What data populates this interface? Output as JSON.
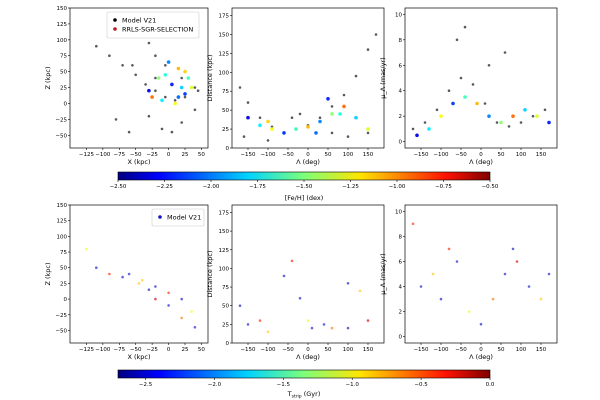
{
  "colors": {
    "model": "#000000",
    "model_blue": "#1414c8",
    "selection": "#b41e1e",
    "frame": "#000000"
  },
  "colorbar_top": {
    "label": "[Fe/H] (dex)",
    "ticks": [
      "−2.50",
      "−2.25",
      "−2.00",
      "−1.75",
      "−1.50",
      "−1.25",
      "−1.00",
      "−0.75",
      "−0.50"
    ],
    "range": [
      -2.5,
      -0.5
    ],
    "colormap": "jet"
  },
  "colorbar_bottom": {
    "label": "T",
    "label_sub": "strip",
    "label_tail": " (Gyr)",
    "ticks": [
      "−2.5",
      "−2.0",
      "−1.5",
      "−1.0",
      "−0.5",
      "0.0"
    ],
    "range": [
      -2.7,
      0.0
    ],
    "colormap": "jet"
  },
  "chart_data": [
    {
      "type": "scatter",
      "panel": "top-left",
      "xlabel": "X (kpc)",
      "ylabel": "Z (kpc)",
      "xlim": [
        -150,
        60
      ],
      "ylim": [
        -70,
        150
      ],
      "xticks": [
        "−125",
        "−100",
        "−75",
        "−50",
        "−25",
        "0",
        "25",
        "50"
      ],
      "yticks": [
        "−50",
        "−25",
        "0",
        "25",
        "50",
        "75",
        "100",
        "125",
        "150"
      ],
      "legend": {
        "placement": "top-center",
        "entries": [
          "Model V21",
          "RRLS-SGR-SELECTION"
        ]
      },
      "series": [
        {
          "name": "Model V21",
          "color": "#000000",
          "points_xy": [
            [
              -110,
              90
            ],
            [
              -90,
              75
            ],
            [
              -70,
              60
            ],
            [
              -50,
              45
            ],
            [
              -35,
              30
            ],
            [
              -20,
              20
            ],
            [
              -5,
              10
            ],
            [
              10,
              5
            ],
            [
              25,
              10
            ],
            [
              40,
              25
            ],
            [
              20,
              40
            ],
            [
              -5,
              60
            ],
            [
              -20,
              75
            ],
            [
              -30,
              95
            ],
            [
              -40,
              120
            ],
            [
              -55,
              60
            ],
            [
              -30,
              -20
            ],
            [
              -10,
              -40
            ],
            [
              5,
              -45
            ],
            [
              20,
              -30
            ],
            [
              40,
              -10
            ],
            [
              -80,
              -25
            ],
            [
              -60,
              -45
            ],
            [
              -20,
              40
            ],
            [
              45,
              20
            ]
          ]
        },
        {
          "name": "RRLS-SGR-SELECTION",
          "color": "#b41e1e",
          "points_xy": [
            [
              -30,
              20
            ],
            [
              -10,
              5
            ],
            [
              10,
              0
            ],
            [
              25,
              15
            ],
            [
              30,
              40
            ],
            [
              15,
              55
            ],
            [
              0,
              65
            ],
            [
              -15,
              40
            ],
            [
              -25,
              10
            ],
            [
              20,
              25
            ],
            [
              35,
              25
            ],
            [
              5,
              30
            ],
            [
              -5,
              45
            ],
            [
              25,
              50
            ],
            [
              15,
              10
            ]
          ]
        }
      ]
    },
    {
      "type": "scatter",
      "panel": "top-middle",
      "xlabel": "Λ (deg)",
      "ylabel": "Distance (kpc)",
      "xlim": [
        -190,
        190
      ],
      "ylim": [
        0,
        185
      ],
      "xticks": [
        "−150",
        "−100",
        "−50",
        "0",
        "50",
        "100",
        "150"
      ],
      "yticks": [
        "0",
        "25",
        "50",
        "75",
        "100",
        "125",
        "150",
        "175"
      ],
      "series": [
        {
          "name": "Model V21",
          "color": "#000000",
          "points_xy": [
            [
              -170,
              80
            ],
            [
              -150,
              60
            ],
            [
              -120,
              40
            ],
            [
              -90,
              28
            ],
            [
              -60,
              20
            ],
            [
              -30,
              25
            ],
            [
              0,
              30
            ],
            [
              30,
              40
            ],
            [
              60,
              55
            ],
            [
              90,
              70
            ],
            [
              120,
              95
            ],
            [
              150,
              130
            ],
            [
              170,
              150
            ],
            [
              -160,
              15
            ],
            [
              -100,
              10
            ],
            [
              -40,
              40
            ],
            [
              -20,
              45
            ],
            [
              60,
              20
            ],
            [
              100,
              15
            ],
            [
              150,
              20
            ]
          ]
        },
        {
          "name": "RRLS-SGR-SELECTION",
          "color": "#b41e1e",
          "points_xy": [
            [
              -150,
              40
            ],
            [
              -120,
              30
            ],
            [
              -90,
              25
            ],
            [
              -60,
              20
            ],
            [
              -30,
              25
            ],
            [
              0,
              28
            ],
            [
              30,
              35
            ],
            [
              60,
              45
            ],
            [
              90,
              55
            ],
            [
              120,
              40
            ],
            [
              150,
              25
            ],
            [
              50,
              65
            ],
            [
              80,
              45
            ],
            [
              -100,
              35
            ],
            [
              20,
              20
            ]
          ]
        }
      ]
    },
    {
      "type": "scatter",
      "panel": "top-right",
      "xlabel": "Λ (deg)",
      "ylabel": "μ_Λ (mas/yr)",
      "xlim": [
        -190,
        190
      ],
      "ylim": [
        -0.5,
        10.5
      ],
      "xticks": [
        "−150",
        "−100",
        "−50",
        "0",
        "50",
        "100",
        "150"
      ],
      "yticks": [
        "0",
        "2",
        "4",
        "6",
        "8",
        "10"
      ],
      "series": [
        {
          "name": "Model V21",
          "color": "#000000",
          "points_xy": [
            [
              -170,
              1
            ],
            [
              -140,
              1.5
            ],
            [
              -110,
              2.5
            ],
            [
              -80,
              4
            ],
            [
              -50,
              5
            ],
            [
              -20,
              4.5
            ],
            [
              10,
              3
            ],
            [
              40,
              1.5
            ],
            [
              70,
              1.2
            ],
            [
              100,
              1.5
            ],
            [
              130,
              2
            ],
            [
              160,
              2.5
            ],
            [
              -60,
              8
            ],
            [
              -40,
              9
            ],
            [
              20,
              6
            ],
            [
              60,
              7
            ]
          ]
        },
        {
          "name": "RRLS-SGR-SELECTION",
          "color": "#b41e1e",
          "points_xy": [
            [
              -160,
              0.5
            ],
            [
              -130,
              1
            ],
            [
              -100,
              2
            ],
            [
              -70,
              3
            ],
            [
              -40,
              3.5
            ],
            [
              -10,
              3
            ],
            [
              20,
              2
            ],
            [
              50,
              1.5
            ],
            [
              80,
              2
            ],
            [
              110,
              2.5
            ],
            [
              140,
              2
            ],
            [
              170,
              1.5
            ]
          ]
        }
      ]
    },
    {
      "type": "scatter",
      "panel": "bottom-left",
      "xlabel": "X (kpc)",
      "ylabel": "Z (kpc)",
      "xlim": [
        -150,
        60
      ],
      "ylim": [
        -70,
        150
      ],
      "xticks": [
        "−125",
        "−100",
        "−75",
        "−50",
        "−25",
        "0",
        "25",
        "50"
      ],
      "yticks": [
        "−50",
        "−25",
        "0",
        "25",
        "50",
        "75",
        "100",
        "125",
        "150"
      ],
      "legend": {
        "placement": "top-right",
        "entries": [
          "Model V21"
        ]
      },
      "series": [
        {
          "name": "Model V21",
          "color": "#1414c8",
          "points_xy": [
            [
              -60,
              40
            ],
            [
              -40,
              30
            ],
            [
              -20,
              20
            ],
            [
              0,
              10
            ],
            [
              20,
              0
            ],
            [
              35,
              -20
            ],
            [
              40,
              -45
            ],
            [
              20,
              -30
            ],
            [
              0,
              -10
            ],
            [
              -20,
              0
            ],
            [
              -30,
              15
            ],
            [
              -45,
              25
            ],
            [
              -70,
              35
            ],
            [
              -90,
              40
            ],
            [
              -110,
              50
            ],
            [
              -125,
              80
            ]
          ]
        }
      ]
    },
    {
      "type": "scatter",
      "panel": "bottom-middle",
      "xlabel": "Λ (deg)",
      "ylabel": "Distance (kpc)",
      "xlim": [
        -190,
        190
      ],
      "ylim": [
        0,
        185
      ],
      "xticks": [
        "−150",
        "−100",
        "−50",
        "0",
        "50",
        "100",
        "150"
      ],
      "yticks": [
        "0",
        "25",
        "50",
        "75",
        "100",
        "125",
        "150",
        "175"
      ],
      "series": [
        {
          "name": "Model V21",
          "color": "#1414c8",
          "points_xy": [
            [
              -150,
              25
            ],
            [
              -100,
              15
            ],
            [
              -60,
              90
            ],
            [
              -40,
              110
            ],
            [
              -20,
              60
            ],
            [
              0,
              30
            ],
            [
              40,
              25
            ],
            [
              60,
              20
            ],
            [
              100,
              20
            ],
            [
              150,
              30
            ],
            [
              100,
              80
            ],
            [
              130,
              70
            ],
            [
              -170,
              50
            ],
            [
              -120,
              30
            ],
            [
              10,
              20
            ]
          ]
        }
      ]
    },
    {
      "type": "scatter",
      "panel": "bottom-right",
      "xlabel": "Λ (deg)",
      "ylabel": "μ_Λ (mas/yr)",
      "xlim": [
        -190,
        190
      ],
      "ylim": [
        -0.5,
        10.5
      ],
      "xticks": [
        "−150",
        "−100",
        "−50",
        "0",
        "50",
        "100",
        "150"
      ],
      "yticks": [
        "0",
        "2",
        "4",
        "6",
        "8",
        "10"
      ],
      "series": [
        {
          "name": "Model V21",
          "color": "#1414c8",
          "points_xy": [
            [
              -150,
              4
            ],
            [
              -120,
              5
            ],
            [
              -100,
              3
            ],
            [
              -80,
              7
            ],
            [
              -60,
              6
            ],
            [
              -30,
              2
            ],
            [
              0,
              1
            ],
            [
              30,
              3
            ],
            [
              60,
              5
            ],
            [
              90,
              6
            ],
            [
              120,
              4
            ],
            [
              150,
              3
            ],
            [
              170,
              5
            ],
            [
              -170,
              9
            ],
            [
              80,
              7
            ]
          ]
        }
      ]
    }
  ]
}
